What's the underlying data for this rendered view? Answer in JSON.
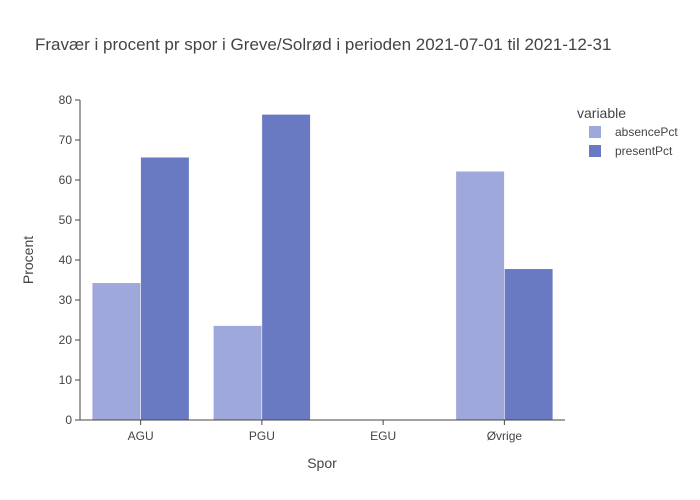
{
  "chart_data": {
    "type": "bar",
    "title": "Fravær i procent pr spor i Greve/Solrød i perioden 2021-07-01 til 2021-12-31",
    "xlabel": "Spor",
    "ylabel": "Procent",
    "categories": [
      "AGU",
      "PGU",
      "EGU",
      "Øvrige"
    ],
    "series": [
      {
        "name": "absencePct",
        "values": [
          34.3,
          23.6,
          0,
          62.2
        ],
        "color": "#9fa8da"
      },
      {
        "name": "presentPct",
        "values": [
          65.7,
          76.4,
          0,
          37.8
        ],
        "color": "#6a7ac2"
      }
    ],
    "ylim": [
      0,
      80
    ],
    "yticks": [
      0,
      10,
      20,
      30,
      40,
      50,
      60,
      70,
      80
    ],
    "legend_title": "variable",
    "legend_position": "top-right",
    "grid": false
  }
}
